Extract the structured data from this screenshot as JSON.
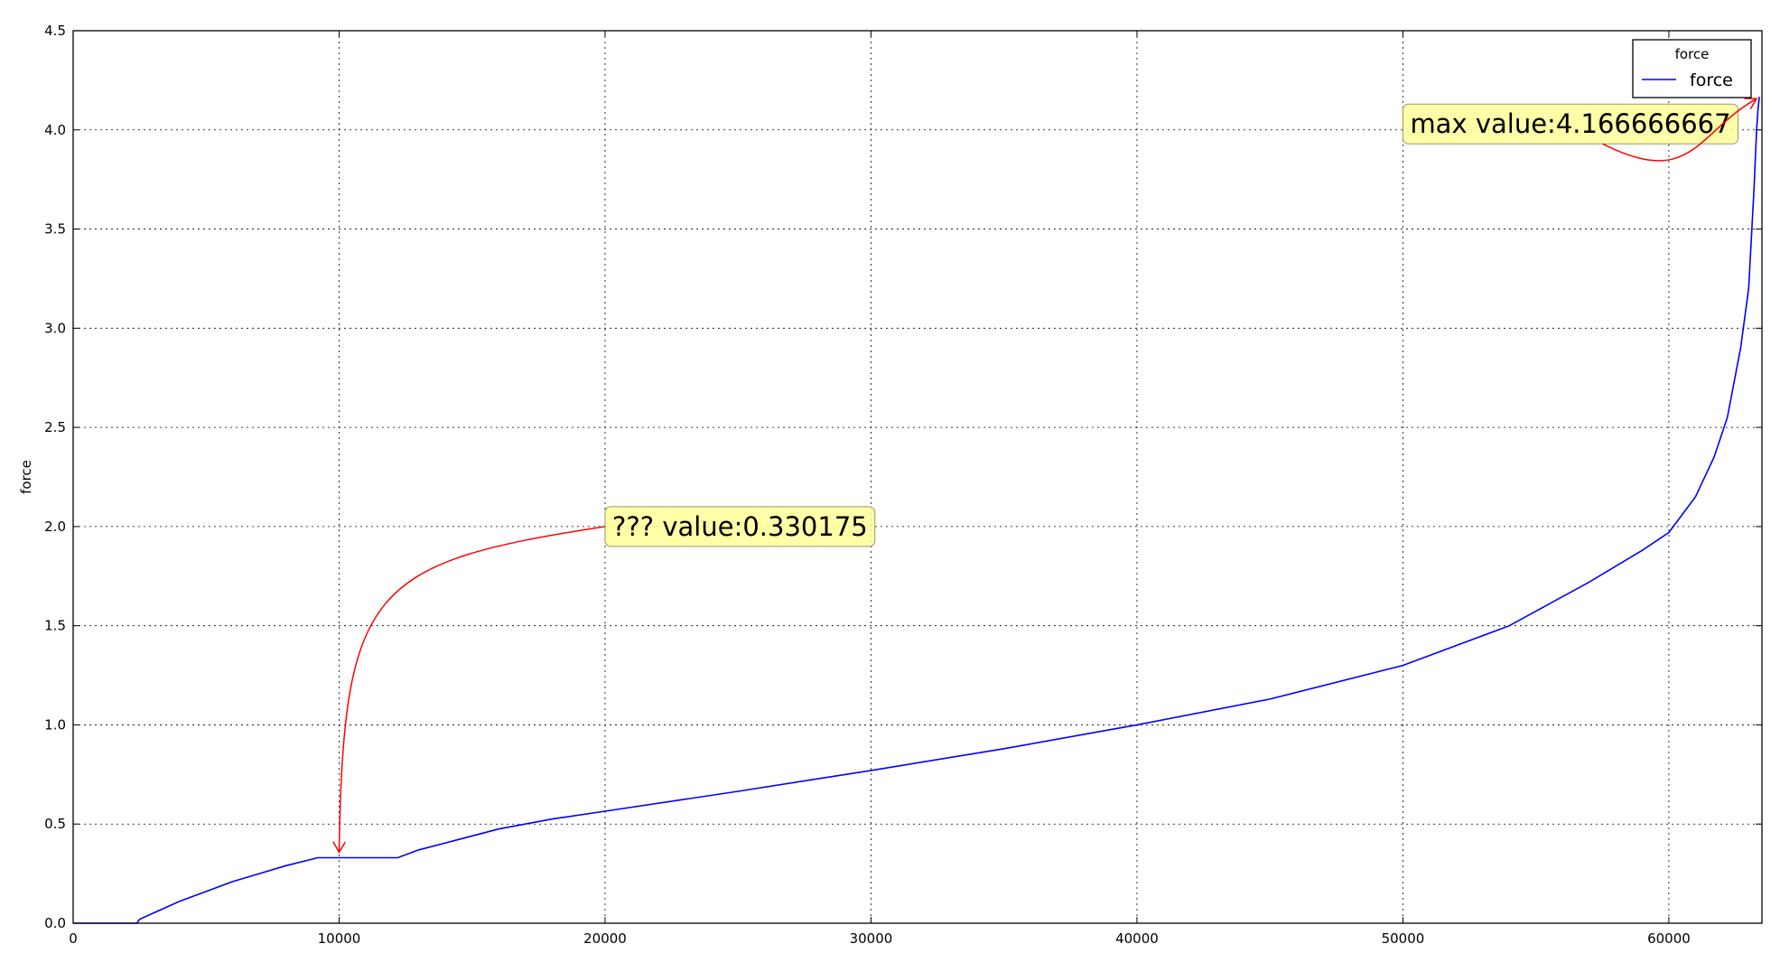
{
  "chart_data": {
    "type": "line",
    "xlabel": "",
    "ylabel": "force",
    "xlim": [
      0,
      63500
    ],
    "ylim": [
      0,
      4.5
    ],
    "xticks": [
      0,
      10000,
      20000,
      30000,
      40000,
      50000,
      60000
    ],
    "yticks": [
      "0.0",
      "0.5",
      "1.0",
      "1.5",
      "2.0",
      "2.5",
      "3.0",
      "3.5",
      "4.0",
      "4.5"
    ],
    "grid": true,
    "legend": {
      "title": "force",
      "placement": "top-right",
      "entries": [
        "force"
      ]
    },
    "colors": {
      "series": "#0000ff",
      "annotation_arrow": "#ff0000",
      "annotation_box": "#ffff99"
    },
    "series": [
      {
        "name": "force",
        "x": [
          0,
          2400,
          2500,
          3000,
          4000,
          5000,
          6000,
          7000,
          8000,
          9200,
          10000,
          11000,
          12200,
          13000,
          14000,
          16000,
          18000,
          20000,
          25000,
          30000,
          35000,
          40000,
          45000,
          50000,
          54000,
          57000,
          59000,
          60000,
          61000,
          61700,
          62200,
          62700,
          63000,
          63200,
          63300,
          63350,
          63400
        ],
        "y": [
          0,
          0,
          0.02,
          0.05,
          0.11,
          0.16,
          0.21,
          0.25,
          0.29,
          0.33,
          0.33,
          0.33,
          0.33,
          0.37,
          0.405,
          0.475,
          0.525,
          0.565,
          0.665,
          0.77,
          0.88,
          1.0,
          1.13,
          1.3,
          1.5,
          1.72,
          1.88,
          1.97,
          2.15,
          2.35,
          2.55,
          2.9,
          3.2,
          3.7,
          4.0,
          4.1,
          4.166666667
        ]
      }
    ],
    "annotations": [
      {
        "text": "??? value:0.330175",
        "x": 10000,
        "y": 0.330175,
        "text_x": 20000,
        "text_y": 2.0
      },
      {
        "text": "max value:4.166666667",
        "x": 63400,
        "y": 4.166666667,
        "text_x": 50000,
        "text_y": 4.03
      }
    ]
  }
}
